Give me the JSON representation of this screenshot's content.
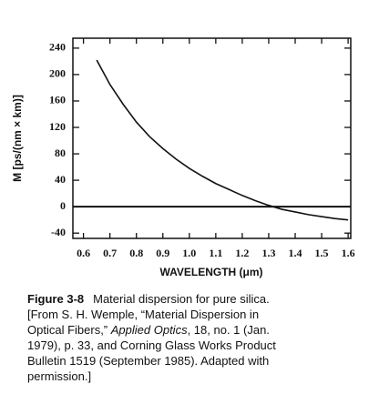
{
  "chart_data": {
    "type": "line",
    "x": [
      0.65,
      0.7,
      0.75,
      0.8,
      0.85,
      0.9,
      0.95,
      1.0,
      1.05,
      1.1,
      1.15,
      1.2,
      1.25,
      1.3,
      1.35,
      1.4,
      1.45,
      1.5,
      1.55,
      1.6
    ],
    "series": [
      {
        "color": "#111111",
        "values": [
          222,
          185,
          155,
          128,
          106,
          88,
          72,
          58,
          46,
          35,
          26,
          17,
          9,
          2,
          -4,
          -8,
          -12,
          -15,
          -18,
          -20
        ]
      }
    ],
    "xlabel": "WAVELENGTH (μm)",
    "ylabel": "M [ps/(nm × km)]",
    "xlim": [
      0.56,
      1.61
    ],
    "ylim": [
      -48,
      255
    ],
    "xticks": [
      0.6,
      0.7,
      0.8,
      0.9,
      {
        "value": 1,
        "label": "1.0"
      },
      1.1,
      1.2,
      1.3,
      1.4,
      1.5,
      1.6
    ],
    "yticks": [
      -40,
      0,
      40,
      80,
      120,
      160,
      200,
      240
    ],
    "zero_line": true,
    "caption_label": "Figure 3-8",
    "caption": [
      [
        {
          "text": "Material dispersion for pure silica."
        }
      ],
      [
        {
          "text": "[From S. H. Wemple, “Material Dispersion in"
        }
      ],
      [
        {
          "text": "Optical Fibers,” "
        },
        {
          "text": "Applied Optics",
          "italic": true
        },
        {
          "text": ", 18, no. 1 (Jan."
        }
      ],
      [
        {
          "text": "1979), p. 33, and Corning Glass Works Product"
        }
      ],
      [
        {
          "text": "Bulletin 1519 (September 1985). Adapted with"
        }
      ],
      [
        {
          "text": "permission.]"
        }
      ]
    ]
  }
}
